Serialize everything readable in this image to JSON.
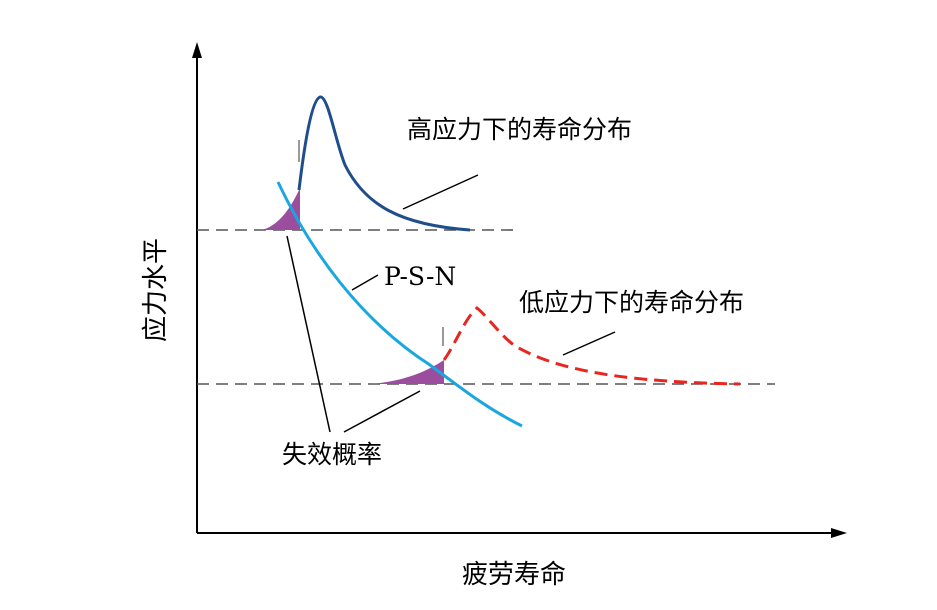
{
  "axes": {
    "x_label": "疲劳寿命",
    "y_label": "应力水平"
  },
  "labels": {
    "high_stress_dist": "高应力下的寿命分布",
    "low_stress_dist": "低应力下的寿命分布",
    "psn": "P-S-N",
    "failure_prob": "失效概率"
  },
  "colors": {
    "axis": "#000000",
    "reference_line": "#555555",
    "high_stress_curve": "#1f4e8c",
    "psn_curve": "#1aa7e0",
    "low_stress_curve": "#e8261f",
    "failure_area": "#9b4e9e",
    "leader_line": "#000000"
  },
  "icons": {
    "x_arrow": "arrow-right-icon",
    "y_arrow": "arrow-up-icon"
  }
}
